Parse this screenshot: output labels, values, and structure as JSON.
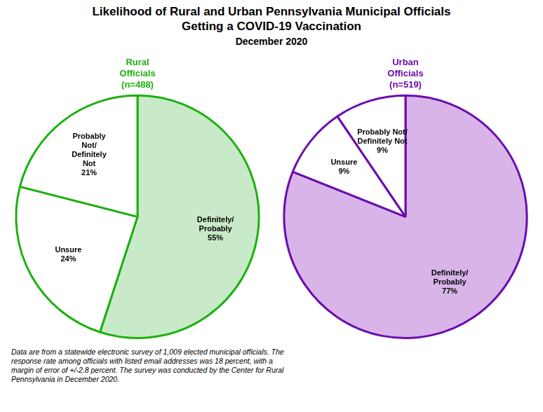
{
  "title": "Likelihood of Rural and Urban Pennsylvania Municipal Officials\nGetting a COVID-19 Vaccination",
  "subtitle": "December 2020",
  "annotations": [
    "Data are from a statewide electronic survey of 1,009 elected municipal officials. The\nresponse rate among officials with listed email addresses was 18 percent, with a\nmargin of error of  +/-2.8 percent. The survey was conducted by the Center for Rural\nPennsylvania in December 2020."
  ],
  "chart_data": [
    {
      "type": "pie",
      "title": "Rural\nOfficials\n(n=488)",
      "color": "#1db010",
      "categories": [
        "Definitely/\nProbably",
        "Unsure",
        "Probably\nNot/\nDefinitely\nNot"
      ],
      "values": [
        55,
        24,
        21
      ],
      "value_labels": [
        "55%",
        "24%",
        "21%"
      ],
      "colors": [
        "#c8eac8",
        "#ffffff",
        "#ffffff"
      ],
      "data_labels": true
    },
    {
      "type": "pie",
      "title": "Urban\nOfficials\n(n=519)",
      "color": "#6a0dad",
      "categories": [
        "Definitely/\nProbably",
        "Unsure",
        "Probably Not/\nDefinitely Not"
      ],
      "values": [
        77,
        9,
        9
      ],
      "value_labels": [
        "77%",
        "9%",
        "9%"
      ],
      "colors": [
        "#d8b4e8",
        "#ffffff",
        "#ffffff"
      ],
      "data_labels": true
    }
  ]
}
